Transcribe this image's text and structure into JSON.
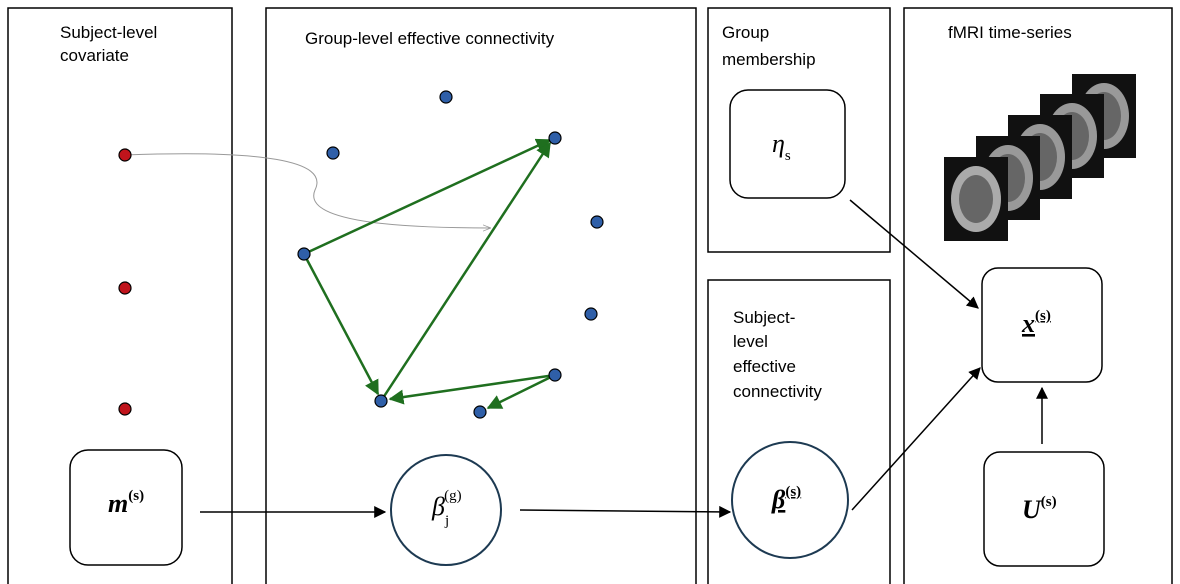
{
  "panels": [
    {
      "title": [
        "Subject-level",
        "covariate"
      ]
    },
    {
      "title": [
        "Group-level effective connectivity"
      ]
    },
    {
      "title": [
        "Group",
        "membership"
      ]
    },
    {
      "title": [
        "Subject-",
        "level",
        "effective",
        "connectivity"
      ]
    },
    {
      "title": [
        "fMRI time-series"
      ]
    }
  ],
  "nodes": [
    {
      "base": "m",
      "sup": "(s)"
    },
    {
      "base": "β",
      "sub": "j",
      "sup": "(g)"
    },
    {
      "base": "η",
      "sub": "s"
    },
    {
      "base": "β",
      "sup": "(s)"
    },
    {
      "base": "x",
      "sup": "(s)"
    },
    {
      "base": "U",
      "sup": "(s)"
    }
  ]
}
